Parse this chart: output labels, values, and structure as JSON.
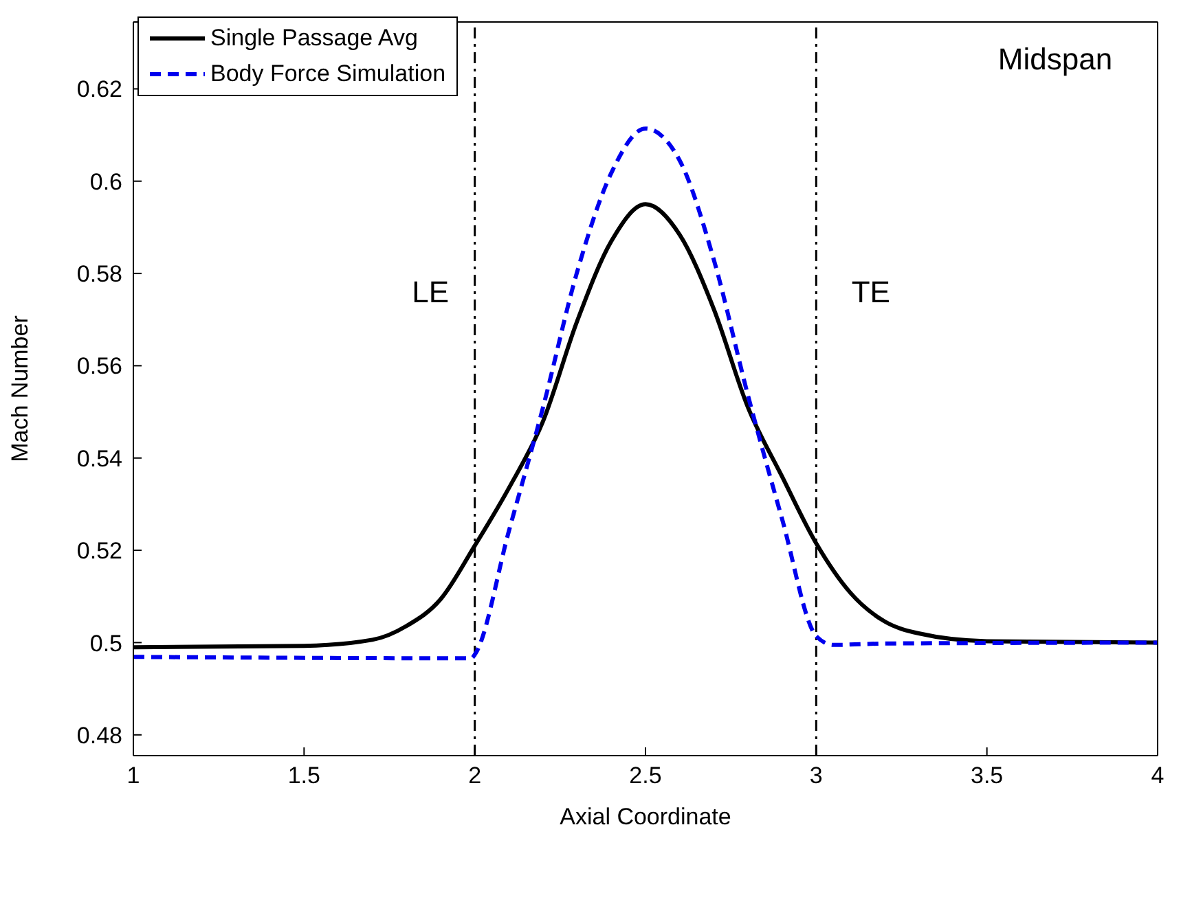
{
  "chart_data": {
    "type": "line",
    "xlabel": "Axial Coordinate",
    "ylabel": "Mach Number",
    "xlim": [
      1,
      4
    ],
    "xticks": [
      1,
      1.5,
      2,
      2.5,
      3,
      3.5,
      4
    ],
    "ylim": [
      0.4755,
      0.6345
    ],
    "yticks": [
      0.48,
      0.5,
      0.52,
      0.54,
      0.56,
      0.58,
      0.6,
      0.62
    ],
    "legend": "top left",
    "marker": "none",
    "series": [
      {
        "name": "Single Passage Avg",
        "color": "#000000",
        "line_style": "solid",
        "x": [
          1,
          1.5,
          1.7,
          1.8,
          1.9,
          2,
          2.1,
          2.2,
          2.3,
          2.4,
          2.5,
          2.6,
          2.7,
          2.8,
          2.9,
          3,
          3.1,
          3.2,
          3.3,
          3.5,
          4
        ],
        "values": [
          0.499,
          0.4993,
          0.5006,
          0.5036,
          0.5094,
          0.521,
          0.5335,
          0.548,
          0.5697,
          0.587,
          0.595,
          0.5884,
          0.5723,
          0.551,
          0.536,
          0.5215,
          0.5108,
          0.5046,
          0.502,
          0.5003,
          0.5
        ]
      },
      {
        "name": "Body Force Simulation",
        "color": "#0000ee",
        "line_style": "dashed",
        "x": [
          1,
          1.99,
          2,
          2.1,
          2.2,
          2.3,
          2.4,
          2.5,
          2.6,
          2.7,
          2.8,
          2.9,
          3,
          3.05,
          3.2,
          4
        ],
        "values": [
          0.4969,
          0.4966,
          0.4974,
          0.5242,
          0.551,
          0.5804,
          0.6018,
          0.6114,
          0.6045,
          0.583,
          0.5536,
          0.5268,
          0.5014,
          0.4995,
          0.4998,
          0.5
        ]
      }
    ],
    "ref_lines": [
      {
        "axis": "x",
        "value": 2,
        "color": "#000000",
        "line_style": "dashdot"
      },
      {
        "axis": "x",
        "value": 3,
        "color": "#000000",
        "line_style": "dashdot"
      }
    ],
    "annotations": [
      "LE",
      "TE",
      "Midspan"
    ]
  }
}
